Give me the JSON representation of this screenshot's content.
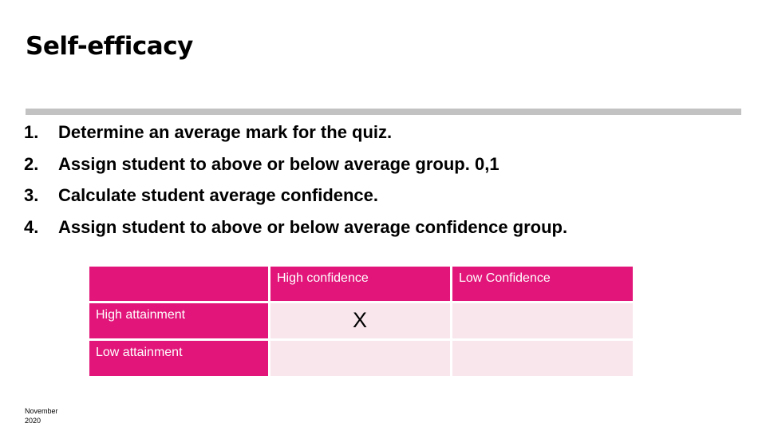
{
  "slide": {
    "title": "Self-efficacy",
    "steps": [
      {
        "number": "1.",
        "text": "Determine an average mark for the quiz."
      },
      {
        "number": "2.",
        "text": "Assign student to above or below average group. 0,1"
      },
      {
        "number": "3.",
        "text": "Calculate student average confidence."
      },
      {
        "number": "4.",
        "text": "Assign student to above or below average confidence group."
      }
    ],
    "table": {
      "col_headers": [
        "",
        "High confidence",
        "Low Confidence"
      ],
      "rows": [
        {
          "label": "High attainment",
          "high_confidence": "X",
          "low_confidence": ""
        },
        {
          "label": "Low attainment",
          "high_confidence": "",
          "low_confidence": ""
        }
      ]
    },
    "footer": "November 2020",
    "colors": {
      "accent": "#e2157a",
      "cell_fill": "#f8e6ec",
      "divider": "#c2c2c2"
    }
  }
}
